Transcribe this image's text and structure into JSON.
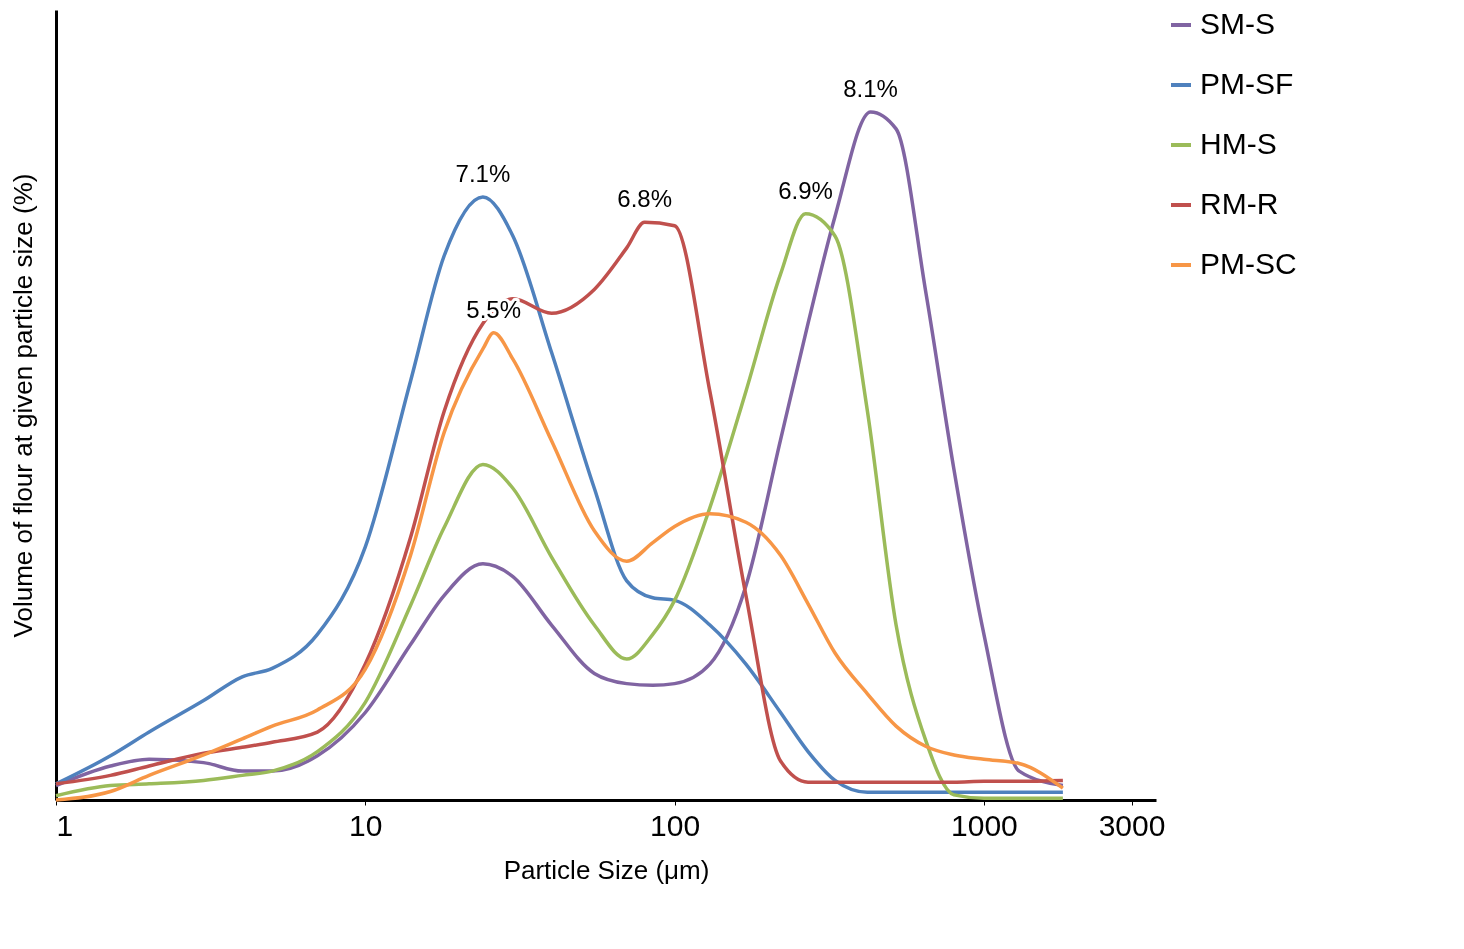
{
  "chart_data": {
    "type": "line",
    "xlabel": "Particle Size (μm)",
    "ylabel": "Volume of flour at given particle size (%)",
    "log": "x",
    "xlim": [
      1,
      3600
    ],
    "xticks": [
      1,
      10,
      100,
      1000,
      3000
    ],
    "ylim": [
      0,
      9.3
    ],
    "tick_labels": "x",
    "grid": false,
    "legend": "right",
    "line_style": "solid",
    "marker": "none",
    "series": [
      {
        "name": "SM-S",
        "color": "#8064a2",
        "x": [
          1,
          1.5,
          2,
          3,
          4,
          5,
          7,
          10,
          14,
          18,
          24,
          30,
          40,
          55,
          70,
          85,
          100,
          130,
          170,
          220,
          270,
          330,
          430,
          520,
          650,
          800,
          1000,
          1300,
          1800
        ],
        "values": [
          0.17,
          0.4,
          0.48,
          0.44,
          0.34,
          0.34,
          0.52,
          1.03,
          1.83,
          2.41,
          2.78,
          2.63,
          2.06,
          1.49,
          1.37,
          1.35,
          1.37,
          1.6,
          2.52,
          4.24,
          5.61,
          6.87,
          8.1,
          7.9,
          5.96,
          3.89,
          1.95,
          0.34,
          0.17
        ],
        "value_labels": [
          null,
          null,
          null,
          null,
          null,
          null,
          null,
          null,
          null,
          null,
          null,
          null,
          null,
          null,
          null,
          null,
          null,
          null,
          null,
          null,
          null,
          null,
          "8.1%",
          null,
          null,
          null,
          null,
          null,
          null
        ]
      },
      {
        "name": "PM-SF",
        "color": "#4f81bd",
        "x": [
          1,
          1.5,
          2,
          3,
          4,
          5,
          7,
          10,
          14,
          18,
          24,
          30,
          40,
          55,
          70,
          85,
          100,
          130,
          170,
          220,
          270,
          330,
          420,
          520,
          650,
          800,
          1000,
          1300,
          1800
        ],
        "values": [
          0.19,
          0.52,
          0.8,
          1.17,
          1.45,
          1.55,
          1.95,
          2.98,
          4.93,
          6.41,
          7.1,
          6.64,
          5.27,
          3.67,
          2.58,
          2.38,
          2.35,
          2.06,
          1.6,
          1.03,
          0.57,
          0.23,
          0.09,
          0.09,
          0.09,
          0.09,
          0.09,
          0.09,
          0.09
        ],
        "value_labels": [
          null,
          null,
          null,
          null,
          null,
          null,
          null,
          null,
          null,
          null,
          "7.1%",
          null,
          null,
          null,
          null,
          null,
          null,
          null,
          null,
          null,
          null,
          null,
          null,
          null,
          null,
          null,
          null,
          null,
          null
        ]
      },
      {
        "name": "HM-S",
        "color": "#9bbb59",
        "x": [
          1,
          1.5,
          2,
          3,
          4,
          5,
          7,
          10,
          14,
          18,
          24,
          30,
          40,
          55,
          70,
          85,
          100,
          130,
          170,
          220,
          265,
          330,
          420,
          520,
          650,
          800,
          1000,
          1300,
          1800
        ],
        "values": [
          0.05,
          0.17,
          0.19,
          0.23,
          0.29,
          0.34,
          0.57,
          1.15,
          2.29,
          3.21,
          3.95,
          3.67,
          2.86,
          2.06,
          1.66,
          1.95,
          2.35,
          3.44,
          4.81,
          6.19,
          6.9,
          6.64,
          4.58,
          2.06,
          0.69,
          0.06,
          0.02,
          0.02,
          0.02
        ],
        "value_labels": [
          null,
          null,
          null,
          null,
          null,
          null,
          null,
          null,
          null,
          null,
          null,
          null,
          null,
          null,
          null,
          null,
          null,
          null,
          null,
          null,
          "6.9%",
          null,
          null,
          null,
          null,
          null,
          null,
          null,
          null
        ]
      },
      {
        "name": "RM-R",
        "color": "#c0504d",
        "x": [
          1,
          1.5,
          2,
          3,
          4,
          5,
          7,
          10,
          14,
          18,
          24,
          30,
          40,
          55,
          70,
          80,
          100,
          130,
          170,
          220,
          270,
          330,
          420,
          520,
          650,
          800,
          1000,
          1300,
          1800
        ],
        "values": [
          0.19,
          0.29,
          0.4,
          0.55,
          0.62,
          0.68,
          0.8,
          1.6,
          3.09,
          4.58,
          5.61,
          5.9,
          5.73,
          6.01,
          6.5,
          6.8,
          6.76,
          4.81,
          2.41,
          0.46,
          0.21,
          0.21,
          0.21,
          0.21,
          0.21,
          0.21,
          0.22,
          0.22,
          0.23
        ],
        "value_labels": [
          null,
          null,
          null,
          null,
          null,
          null,
          null,
          null,
          null,
          null,
          null,
          null,
          null,
          null,
          null,
          "6.8%",
          null,
          null,
          null,
          null,
          null,
          null,
          null,
          null,
          null,
          null,
          null,
          null,
          null
        ]
      },
      {
        "name": "PM-SC",
        "color": "#f79646",
        "x": [
          1,
          1.5,
          2,
          3,
          4,
          5,
          7,
          10,
          14,
          18,
          24,
          26,
          30,
          40,
          55,
          70,
          85,
          100,
          130,
          170,
          220,
          270,
          330,
          420,
          520,
          650,
          800,
          1000,
          1300,
          1800
        ],
        "values": [
          0,
          0.1,
          0.29,
          0.53,
          0.72,
          0.87,
          1.06,
          1.54,
          2.88,
          4.33,
          5.31,
          5.5,
          5.19,
          4.23,
          3.17,
          2.81,
          3.03,
          3.22,
          3.37,
          3.27,
          2.88,
          2.31,
          1.73,
          1.25,
          0.87,
          0.63,
          0.53,
          0.48,
          0.43,
          0.14
        ],
        "value_labels": [
          null,
          null,
          null,
          null,
          null,
          null,
          null,
          null,
          null,
          null,
          null,
          "5.5%",
          null,
          null,
          null,
          null,
          null,
          null,
          null,
          null,
          null,
          null,
          null,
          null,
          null,
          null,
          null,
          null,
          null,
          null
        ]
      }
    ]
  }
}
